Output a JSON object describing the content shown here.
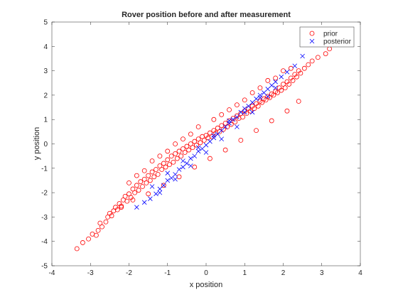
{
  "figure": {
    "title": "Rover position before and after measurement",
    "xlabel": "x position",
    "ylabel": "y position"
  },
  "chart_data": {
    "type": "scatter",
    "title": "Rover position before and after measurement",
    "xlabel": "x position",
    "ylabel": "y position",
    "xlim": [
      -4,
      4
    ],
    "ylim": [
      -5,
      5
    ],
    "xticks": [
      "-4",
      "-3",
      "-2",
      "-1",
      "0",
      "1",
      "2",
      "3",
      "4"
    ],
    "yticks": [
      "-5",
      "-4",
      "-3",
      "-2",
      "-1",
      "0",
      "1",
      "2",
      "3",
      "4",
      "5"
    ],
    "grid": false,
    "legend": "top-right",
    "series": [
      {
        "name": "prior",
        "marker": "circle",
        "color": "#ff0000",
        "x": [
          -3.35,
          -3.2,
          -3.05,
          -2.95,
          -2.85,
          -2.8,
          -2.75,
          -2.7,
          -2.6,
          -2.55,
          -2.5,
          -2.45,
          -2.4,
          -2.35,
          -2.3,
          -2.25,
          -2.2,
          -2.15,
          -2.1,
          -2.05,
          -2.0,
          -1.95,
          -1.9,
          -1.85,
          -1.8,
          -1.75,
          -1.7,
          -1.65,
          -1.6,
          -1.55,
          -1.5,
          -1.45,
          -1.4,
          -1.35,
          -1.3,
          -1.25,
          -1.2,
          -1.15,
          -1.1,
          -1.05,
          -1.0,
          -0.95,
          -0.9,
          -0.85,
          -0.8,
          -0.75,
          -0.7,
          -0.65,
          -0.6,
          -0.55,
          -0.5,
          -0.45,
          -0.4,
          -0.35,
          -0.3,
          -0.25,
          -0.2,
          -0.15,
          -0.1,
          -0.05,
          0.0,
          0.05,
          0.1,
          0.15,
          0.2,
          0.25,
          0.3,
          0.35,
          0.4,
          0.45,
          0.5,
          0.55,
          0.6,
          0.65,
          0.7,
          0.75,
          0.8,
          0.85,
          0.9,
          0.95,
          1.0,
          1.05,
          1.1,
          1.15,
          1.2,
          1.25,
          1.3,
          1.35,
          1.4,
          1.45,
          1.5,
          1.55,
          1.6,
          1.65,
          1.7,
          1.75,
          1.8,
          1.85,
          1.9,
          1.95,
          2.0,
          2.05,
          2.1,
          2.15,
          2.2,
          2.25,
          2.3,
          2.35,
          2.4,
          2.45,
          2.55,
          2.65,
          2.75,
          2.9,
          3.1,
          3.2,
          -2.0,
          -1.8,
          -1.6,
          -1.4,
          -1.2,
          -1.0,
          -0.8,
          -0.6,
          -0.4,
          -0.2,
          0.2,
          0.4,
          0.6,
          0.8,
          1.0,
          1.2,
          1.4,
          1.6,
          1.8,
          2.0,
          2.2,
          -2.2,
          -1.9,
          -1.5,
          -1.1,
          -0.7,
          -0.3,
          0.1,
          0.5,
          0.9,
          1.3,
          1.7,
          2.1,
          2.4
        ],
        "y": [
          -4.3,
          -4.05,
          -3.9,
          -3.7,
          -3.75,
          -3.55,
          -3.25,
          -3.4,
          -3.2,
          -3.0,
          -2.85,
          -2.95,
          -2.75,
          -2.6,
          -2.7,
          -2.45,
          -2.55,
          -2.3,
          -2.15,
          -2.35,
          -2.05,
          -2.2,
          -1.85,
          -2.0,
          -1.7,
          -1.9,
          -1.55,
          -1.75,
          -1.45,
          -1.6,
          -1.3,
          -1.5,
          -1.15,
          -1.35,
          -1.05,
          -1.25,
          -0.9,
          -1.05,
          -0.8,
          -0.95,
          -0.65,
          -0.85,
          -0.5,
          -0.75,
          -0.4,
          -0.6,
          -0.3,
          -0.5,
          -0.2,
          -0.35,
          -0.1,
          -0.25,
          0.0,
          -0.15,
          0.1,
          -0.05,
          0.2,
          0.05,
          0.3,
          0.15,
          0.35,
          0.25,
          0.45,
          0.3,
          0.55,
          0.45,
          0.65,
          0.5,
          0.75,
          0.6,
          0.85,
          0.7,
          0.95,
          0.8,
          1.05,
          0.9,
          1.15,
          1.05,
          1.25,
          1.1,
          1.35,
          1.25,
          1.45,
          1.35,
          1.55,
          1.45,
          1.65,
          1.55,
          1.75,
          1.7,
          1.85,
          1.8,
          1.95,
          1.9,
          2.05,
          2.0,
          2.15,
          2.1,
          2.3,
          2.2,
          2.45,
          2.3,
          2.55,
          2.45,
          2.7,
          2.6,
          2.85,
          2.75,
          3.0,
          2.9,
          3.1,
          3.25,
          3.4,
          3.55,
          3.7,
          3.9,
          -1.6,
          -1.3,
          -1.1,
          -0.7,
          -0.5,
          -0.3,
          0.0,
          0.2,
          0.4,
          0.7,
          1.0,
          1.2,
          1.4,
          1.6,
          1.8,
          2.1,
          2.3,
          2.6,
          2.7,
          3.0,
          3.1,
          -2.6,
          -2.3,
          -2.05,
          -1.7,
          -1.35,
          -0.95,
          -0.6,
          -0.25,
          0.15,
          0.55,
          0.95,
          1.35,
          1.75
        ]
      },
      {
        "name": "posterior",
        "marker": "x",
        "color": "#0000ff",
        "x": [
          -1.8,
          -1.6,
          -1.45,
          -1.3,
          -1.2,
          -1.1,
          -1.0,
          -0.9,
          -0.8,
          -0.7,
          -0.6,
          -0.5,
          -0.4,
          -0.3,
          -0.2,
          -0.1,
          0.0,
          0.1,
          0.2,
          0.3,
          0.4,
          0.5,
          0.6,
          0.7,
          0.8,
          0.9,
          1.0,
          1.1,
          1.2,
          1.3,
          1.4,
          1.5,
          1.6,
          1.7,
          1.8,
          1.95,
          2.1,
          2.3,
          2.5,
          -1.4,
          -1.0,
          -0.6,
          -0.2,
          0.2,
          0.6,
          1.0,
          1.4,
          1.8,
          -1.2,
          -0.8,
          -0.4,
          0.0,
          0.4,
          0.8,
          1.2,
          1.6
        ],
        "y": [
          -2.6,
          -2.4,
          -2.25,
          -2.05,
          -1.85,
          -1.7,
          -1.5,
          -1.4,
          -1.25,
          -1.05,
          -0.95,
          -0.8,
          -0.6,
          -0.5,
          -0.3,
          -0.2,
          -0.05,
          0.1,
          0.25,
          0.4,
          0.55,
          0.7,
          0.85,
          1.0,
          1.1,
          1.3,
          1.45,
          1.55,
          1.7,
          1.85,
          2.0,
          2.1,
          2.25,
          2.4,
          2.55,
          2.75,
          2.95,
          3.2,
          3.6,
          -1.75,
          -1.2,
          -0.7,
          -0.15,
          0.35,
          0.95,
          1.3,
          1.9,
          2.3,
          -2.0,
          -1.45,
          -0.9,
          -0.35,
          0.2,
          0.7,
          1.3,
          1.95
        ]
      }
    ]
  }
}
